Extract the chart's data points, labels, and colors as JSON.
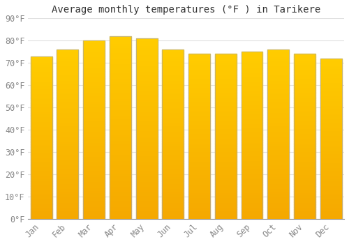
{
  "title": "Average monthly temperatures (°F ) in Tarikere",
  "months": [
    "Jan",
    "Feb",
    "Mar",
    "Apr",
    "May",
    "Jun",
    "Jul",
    "Aug",
    "Sep",
    "Oct",
    "Nov",
    "Dec"
  ],
  "values": [
    73,
    76,
    80,
    82,
    81,
    76,
    74,
    74,
    75,
    76,
    74,
    72
  ],
  "bar_color_top": "#FFCC33",
  "bar_color_bottom": "#F5A800",
  "bar_edge_color": "#AAAAAA",
  "background_color": "#FFFFFF",
  "grid_color": "#E0E0E0",
  "text_color": "#888888",
  "ylim": [
    0,
    90
  ],
  "yticks": [
    0,
    10,
    20,
    30,
    40,
    50,
    60,
    70,
    80,
    90
  ],
  "title_fontsize": 10,
  "tick_fontsize": 8.5,
  "font_family": "monospace",
  "bar_width": 0.82
}
